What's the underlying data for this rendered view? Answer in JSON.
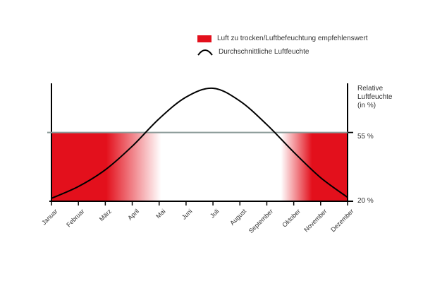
{
  "chart_data": {
    "type": "line",
    "ylabel_lines": [
      "Relative",
      "Luftfeuchte",
      "(in %)"
    ],
    "ytick_labels": [
      "55 %",
      "20 %"
    ],
    "yticks": [
      55,
      20
    ],
    "ylim": [
      20,
      80
    ],
    "threshold": 55,
    "categories": [
      "Januar",
      "Februar",
      "März",
      "April",
      "Mai",
      "Juni",
      "Juli",
      "August",
      "September",
      "Oktober",
      "November",
      "Dezember"
    ],
    "series": [
      {
        "name": "Durchschnittliche Luftfeuchte",
        "color": "#000000",
        "values": [
          21.5,
          27.5,
          36,
          48,
          62,
          73,
          77.5,
          71,
          59,
          45,
          32,
          22
        ]
      }
    ],
    "shaded_band": {
      "name": "Luft zu trocken/Luftbefeuchtung empfehlenswert",
      "color": "#e3101c",
      "range": [
        20,
        55
      ]
    },
    "threshold_color": "#8a9a98"
  }
}
